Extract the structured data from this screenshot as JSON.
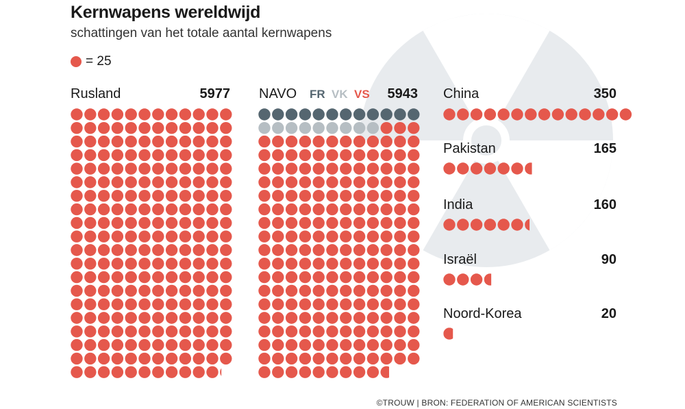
{
  "title": "Kernwapens wereldwijd",
  "subtitle": "schattingen van het totale aantal kernwapens",
  "legend": {
    "dot_value_text": "= 25",
    "dot_value": 25
  },
  "source": "©TROUW |  BRON: FEDERATION OF AMERICAN SCIENTISTS",
  "colors": {
    "red": "#e5584c",
    "dark": "#556670",
    "light": "#b6bec3",
    "symbol": "#e8ebee"
  },
  "labels": {
    "russia": "Rusland",
    "russia_value": "5977",
    "nato": "NAVO",
    "fr": "FR",
    "vk": "VK",
    "vs": "VS",
    "nato_value": "5943",
    "china": "China",
    "china_value": "350",
    "pakistan": "Pakistan",
    "pakistan_value": "165",
    "india": "India",
    "india_value": "160",
    "israel": "Israël",
    "israel_value": "90",
    "nk": "Noord-Korea",
    "nk_value": "20"
  },
  "chart_data": {
    "type": "waffle",
    "unit": 25,
    "series": [
      {
        "name": "Rusland",
        "value": 5977
      },
      {
        "name": "NAVO",
        "value": 5943,
        "parts": [
          {
            "name": "FR",
            "value": 300
          },
          {
            "name": "VK",
            "value": 225
          },
          {
            "name": "VS",
            "value": 5418
          }
        ]
      },
      {
        "name": "China",
        "value": 350
      },
      {
        "name": "Pakistan",
        "value": 165
      },
      {
        "name": "India",
        "value": 160
      },
      {
        "name": "Israël",
        "value": 90
      },
      {
        "name": "Noord-Korea",
        "value": 20
      }
    ]
  }
}
